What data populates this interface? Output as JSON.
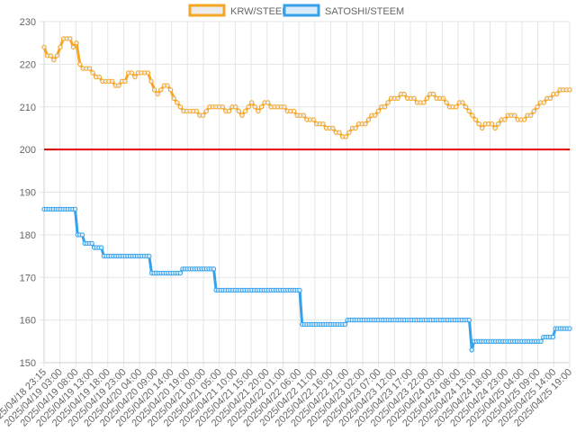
{
  "chart_data": {
    "type": "line",
    "ylim": [
      150,
      230
    ],
    "yticks": [
      150,
      160,
      170,
      180,
      190,
      200,
      210,
      220,
      230
    ],
    "grid": true,
    "legend_position": "top-center",
    "x_tick_labels": [
      "2025/04/18 23:15",
      "2025/04/19 03:00",
      "2025/04/19 08:00",
      "2025/04/19 13:00",
      "2025/04/19 18:00",
      "2025/04/19 23:00",
      "2025/04/20 04:00",
      "2025/04/20 09:00",
      "2025/04/20 14:00",
      "2025/04/20 19:00",
      "2025/04/21 00:00",
      "2025/04/21 05:00",
      "2025/04/21 10:00",
      "2025/04/21 15:00",
      "2025/04/21 20:00",
      "2025/04/22 01:00",
      "2025/04/22 06:00",
      "2025/04/22 11:00",
      "2025/04/22 16:00",
      "2025/04/22 21:00",
      "2025/04/23 02:00",
      "2025/04/23 07:00",
      "2025/04/23 12:00",
      "2025/04/23 17:00",
      "2025/04/23 22:00",
      "2025/04/24 03:00",
      "2025/04/24 08:00",
      "2025/04/24 13:00",
      "2025/04/24 18:00",
      "2025/04/24 23:00",
      "2025/04/25 04:00",
      "2025/04/25 09:00",
      "2025/04/25 14:00",
      "2025/04/25 19:00"
    ],
    "reference_line": {
      "y": 200,
      "color": "#e00000"
    },
    "series": [
      {
        "name": "KRW/STEEM",
        "color": "#f5a623",
        "fill": "#ececec",
        "values": [
          224,
          222,
          222,
          221,
          222,
          224,
          226,
          226,
          226,
          224,
          225,
          220,
          219,
          219,
          219,
          218,
          217,
          217,
          216,
          216,
          216,
          216,
          215,
          215,
          216,
          216,
          218,
          218,
          217,
          218,
          218,
          218,
          218,
          216,
          214,
          213,
          214,
          215,
          215,
          214,
          212,
          211,
          210,
          209,
          209,
          209,
          209,
          209,
          208,
          208,
          209,
          210,
          210,
          210,
          210,
          210,
          209,
          209,
          210,
          210,
          209,
          208,
          209,
          210,
          211,
          210,
          209,
          210,
          211,
          211,
          210,
          210,
          210,
          210,
          210,
          209,
          209,
          209,
          208,
          208,
          208,
          207,
          207,
          207,
          206,
          206,
          206,
          205,
          205,
          205,
          204,
          204,
          203,
          203,
          204,
          205,
          205,
          206,
          206,
          206,
          207,
          208,
          208,
          209,
          210,
          210,
          211,
          212,
          212,
          212,
          213,
          213,
          212,
          212,
          212,
          211,
          211,
          211,
          212,
          213,
          213,
          212,
          212,
          212,
          211,
          210,
          210,
          210,
          211,
          211,
          210,
          209,
          208,
          207,
          206,
          205,
          206,
          206,
          206,
          205,
          206,
          207,
          207,
          208,
          208,
          208,
          207,
          207,
          207,
          208,
          208,
          209,
          210,
          211,
          211,
          212,
          212,
          213,
          213,
          214,
          214,
          214,
          214
        ]
      },
      {
        "name": "SATOSHI/STEEM",
        "color": "#36a2eb",
        "fill": "#d9ecfa",
        "values": [
          186,
          186,
          186,
          186,
          186,
          186,
          186,
          186,
          186,
          186,
          186,
          186,
          186,
          186,
          180,
          180,
          180,
          178,
          178,
          178,
          178,
          177,
          177,
          177,
          177,
          175,
          175,
          175,
          175,
          175,
          175,
          175,
          175,
          175,
          175,
          175,
          175,
          175,
          175,
          175,
          175,
          175,
          175,
          175,
          175,
          171,
          171,
          171,
          171,
          171,
          171,
          171,
          171,
          171,
          171,
          171,
          171,
          171,
          172,
          172,
          172,
          172,
          172,
          172,
          172,
          172,
          172,
          172,
          172,
          172,
          172,
          172,
          167,
          167,
          167,
          167,
          167,
          167,
          167,
          167,
          167,
          167,
          167,
          167,
          167,
          167,
          167,
          167,
          167,
          167,
          167,
          167,
          167,
          167,
          167,
          167,
          167,
          167,
          167,
          167,
          167,
          167,
          167,
          167,
          167,
          167,
          167,
          167,
          159,
          159,
          159,
          159,
          159,
          159,
          159,
          159,
          159,
          159,
          159,
          159,
          159,
          159,
          159,
          159,
          159,
          159,
          159,
          160,
          160,
          160,
          160,
          160,
          160,
          160,
          160,
          160,
          160,
          160,
          160,
          160,
          160,
          160,
          160,
          160,
          160,
          160,
          160,
          160,
          160,
          160,
          160,
          160,
          160,
          160,
          160,
          160,
          160,
          160,
          160,
          160,
          160,
          160,
          160,
          160,
          160,
          160,
          160,
          160,
          160,
          160,
          160,
          160,
          160,
          160,
          160,
          160,
          160,
          160,
          160,
          153,
          155,
          155,
          155,
          155,
          155,
          155,
          155,
          155,
          155,
          155,
          155,
          155,
          155,
          155,
          155,
          155,
          155,
          155,
          155,
          155,
          155,
          155,
          155,
          155,
          155,
          155,
          155,
          155,
          155,
          156,
          156,
          156,
          156,
          156,
          158,
          158,
          158,
          158,
          158,
          158,
          158
        ]
      }
    ]
  }
}
